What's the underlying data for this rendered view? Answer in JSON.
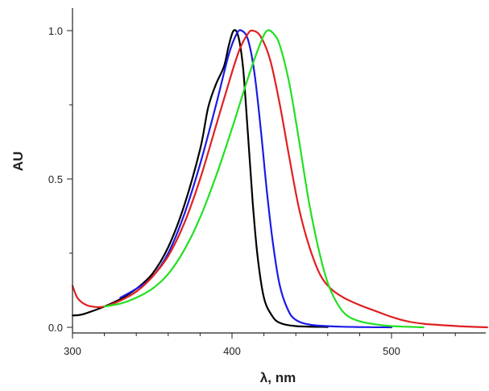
{
  "chart_data": {
    "type": "line",
    "title": "",
    "xlabel": "λ, nm",
    "ylabel": "AU",
    "xlim": [
      300,
      560
    ],
    "ylim": [
      0,
      1.1
    ],
    "x_ticks": [
      300,
      400,
      500
    ],
    "x_tick_labels": [
      "300",
      "400",
      "500"
    ],
    "x_minor_ticks": [
      320,
      340,
      360,
      380,
      420,
      440,
      460,
      480,
      520,
      540
    ],
    "y_ticks": [
      0.0,
      0.5,
      1.0
    ],
    "y_tick_labels": [
      "0.0",
      "0.5",
      "1.0"
    ],
    "y_minor_ticks": [
      0.25,
      0.75
    ],
    "grid": false,
    "legend": "none",
    "series": [
      {
        "name": "black",
        "color": "#000000",
        "points": [
          [
            300,
            0.04
          ],
          [
            305,
            0.042
          ],
          [
            310,
            0.05
          ],
          [
            320,
            0.07
          ],
          [
            330,
            0.095
          ],
          [
            340,
            0.13
          ],
          [
            350,
            0.18
          ],
          [
            360,
            0.27
          ],
          [
            370,
            0.41
          ],
          [
            380,
            0.6
          ],
          [
            385,
            0.74
          ],
          [
            390,
            0.82
          ],
          [
            395,
            0.88
          ],
          [
            398,
            0.95
          ],
          [
            401,
            1.0
          ],
          [
            404,
            0.98
          ],
          [
            407,
            0.87
          ],
          [
            410,
            0.65
          ],
          [
            413,
            0.42
          ],
          [
            416,
            0.24
          ],
          [
            420,
            0.1
          ],
          [
            425,
            0.04
          ],
          [
            430,
            0.015
          ],
          [
            440,
            0.004
          ],
          [
            460,
            0.001
          ]
        ]
      },
      {
        "name": "blue",
        "color": "#1a1ae6",
        "points": [
          [
            330,
            0.1
          ],
          [
            340,
            0.13
          ],
          [
            350,
            0.17
          ],
          [
            360,
            0.25
          ],
          [
            370,
            0.38
          ],
          [
            380,
            0.55
          ],
          [
            390,
            0.75
          ],
          [
            398,
            0.92
          ],
          [
            403,
            0.99
          ],
          [
            406,
            1.0
          ],
          [
            410,
            0.97
          ],
          [
            414,
            0.86
          ],
          [
            418,
            0.67
          ],
          [
            422,
            0.45
          ],
          [
            426,
            0.27
          ],
          [
            430,
            0.14
          ],
          [
            435,
            0.06
          ],
          [
            440,
            0.025
          ],
          [
            450,
            0.008
          ],
          [
            470,
            0.002
          ],
          [
            500,
            0.0
          ]
        ]
      },
      {
        "name": "red",
        "color": "#e02020",
        "points": [
          [
            300,
            0.14
          ],
          [
            303,
            0.1
          ],
          [
            307,
            0.08
          ],
          [
            312,
            0.07
          ],
          [
            320,
            0.07
          ],
          [
            330,
            0.09
          ],
          [
            340,
            0.12
          ],
          [
            350,
            0.17
          ],
          [
            360,
            0.24
          ],
          [
            370,
            0.35
          ],
          [
            380,
            0.5
          ],
          [
            390,
            0.68
          ],
          [
            400,
            0.86
          ],
          [
            405,
            0.94
          ],
          [
            410,
            0.99
          ],
          [
            413,
            1.0
          ],
          [
            418,
            0.98
          ],
          [
            424,
            0.9
          ],
          [
            430,
            0.75
          ],
          [
            436,
            0.57
          ],
          [
            442,
            0.4
          ],
          [
            448,
            0.28
          ],
          [
            455,
            0.18
          ],
          [
            462,
            0.13
          ],
          [
            470,
            0.1
          ],
          [
            480,
            0.075
          ],
          [
            490,
            0.055
          ],
          [
            500,
            0.035
          ],
          [
            510,
            0.02
          ],
          [
            520,
            0.012
          ],
          [
            530,
            0.008
          ],
          [
            545,
            0.003
          ],
          [
            560,
            0.0
          ]
        ]
      },
      {
        "name": "green",
        "color": "#22e022",
        "points": [
          [
            320,
            0.07
          ],
          [
            330,
            0.08
          ],
          [
            340,
            0.1
          ],
          [
            350,
            0.13
          ],
          [
            360,
            0.18
          ],
          [
            370,
            0.26
          ],
          [
            380,
            0.37
          ],
          [
            390,
            0.51
          ],
          [
            400,
            0.67
          ],
          [
            410,
            0.84
          ],
          [
            418,
            0.96
          ],
          [
            422,
            1.0
          ],
          [
            426,
            0.99
          ],
          [
            430,
            0.95
          ],
          [
            436,
            0.82
          ],
          [
            442,
            0.63
          ],
          [
            448,
            0.43
          ],
          [
            454,
            0.27
          ],
          [
            460,
            0.15
          ],
          [
            466,
            0.08
          ],
          [
            472,
            0.04
          ],
          [
            480,
            0.02
          ],
          [
            490,
            0.01
          ],
          [
            500,
            0.004
          ],
          [
            510,
            0.002
          ],
          [
            520,
            0.0
          ]
        ]
      }
    ]
  }
}
